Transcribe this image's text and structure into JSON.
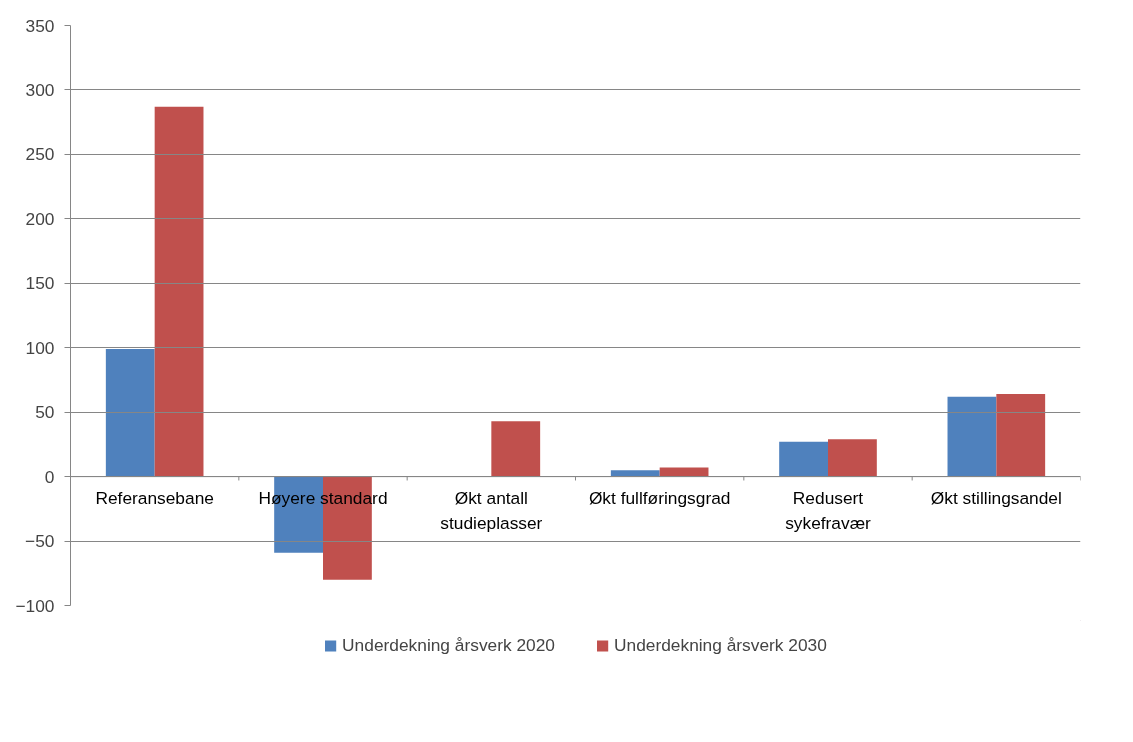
{
  "chart_data": {
    "type": "bar",
    "categories": [
      "Referansebane",
      "Høyere standard",
      "Økt antall\nstudieplasser",
      "Økt fullføringsgrad",
      "Redusert\nsykefravær",
      "Økt stillingsandel"
    ],
    "series": [
      {
        "name": "Underdekning årsverk 2020",
        "color": "#4f81bd",
        "values": [
          99,
          -59,
          0,
          5,
          27,
          62
        ]
      },
      {
        "name": "Underdekning årsverk 2030",
        "color": "#c0504d",
        "values": [
          287,
          -80,
          43,
          7,
          29,
          64
        ]
      }
    ],
    "ylim": [
      -100,
      350
    ],
    "yticks": [
      -100,
      -50,
      0,
      50,
      100,
      150,
      200,
      250,
      300,
      350
    ],
    "grid": "y",
    "legend": "bottom"
  }
}
